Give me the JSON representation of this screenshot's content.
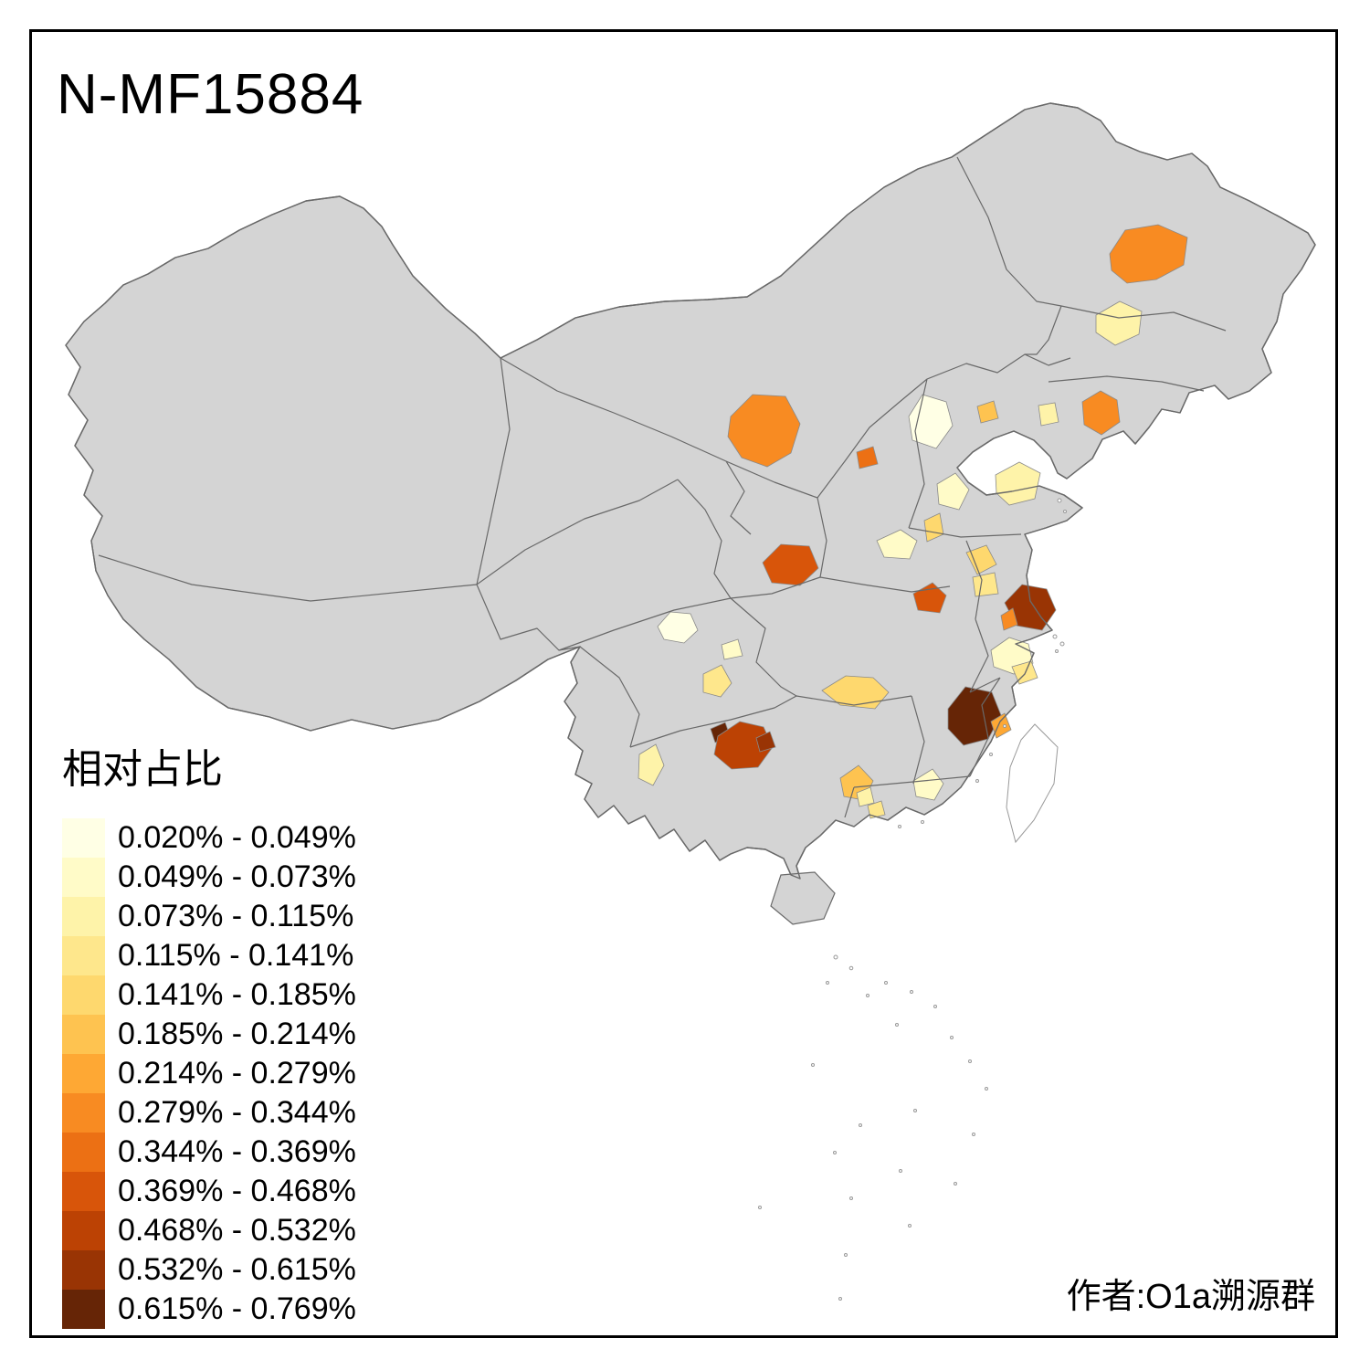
{
  "title": "N-MF15884",
  "credit": "作者:O1a溯源群",
  "legend": {
    "title": "相对占比",
    "classes": [
      {
        "label": "0.020% - 0.049%",
        "color": "#FFFFE5"
      },
      {
        "label": "0.049% - 0.073%",
        "color": "#FFFBC8"
      },
      {
        "label": "0.073% - 0.115%",
        "color": "#FEF3A9"
      },
      {
        "label": "0.115% - 0.141%",
        "color": "#FEE78C"
      },
      {
        "label": "0.141% - 0.185%",
        "color": "#FED86E"
      },
      {
        "label": "0.185% - 0.214%",
        "color": "#FEC350"
      },
      {
        "label": "0.214% - 0.279%",
        "color": "#FEA834"
      },
      {
        "label": "0.279% - 0.344%",
        "color": "#F88B22"
      },
      {
        "label": "0.344% - 0.369%",
        "color": "#EC7014"
      },
      {
        "label": "0.369% - 0.468%",
        "color": "#D8550A"
      },
      {
        "label": "0.468% - 0.532%",
        "color": "#BC4204"
      },
      {
        "label": "0.532% - 0.615%",
        "color": "#993404"
      },
      {
        "label": "0.615% - 0.769%",
        "color": "#662506"
      }
    ]
  },
  "map": {
    "land_fill": "#D4D4D4",
    "border_color": "#696969",
    "sea_fill": "#FFFFFF",
    "taiwan_fill": "#FFFFFF"
  }
}
